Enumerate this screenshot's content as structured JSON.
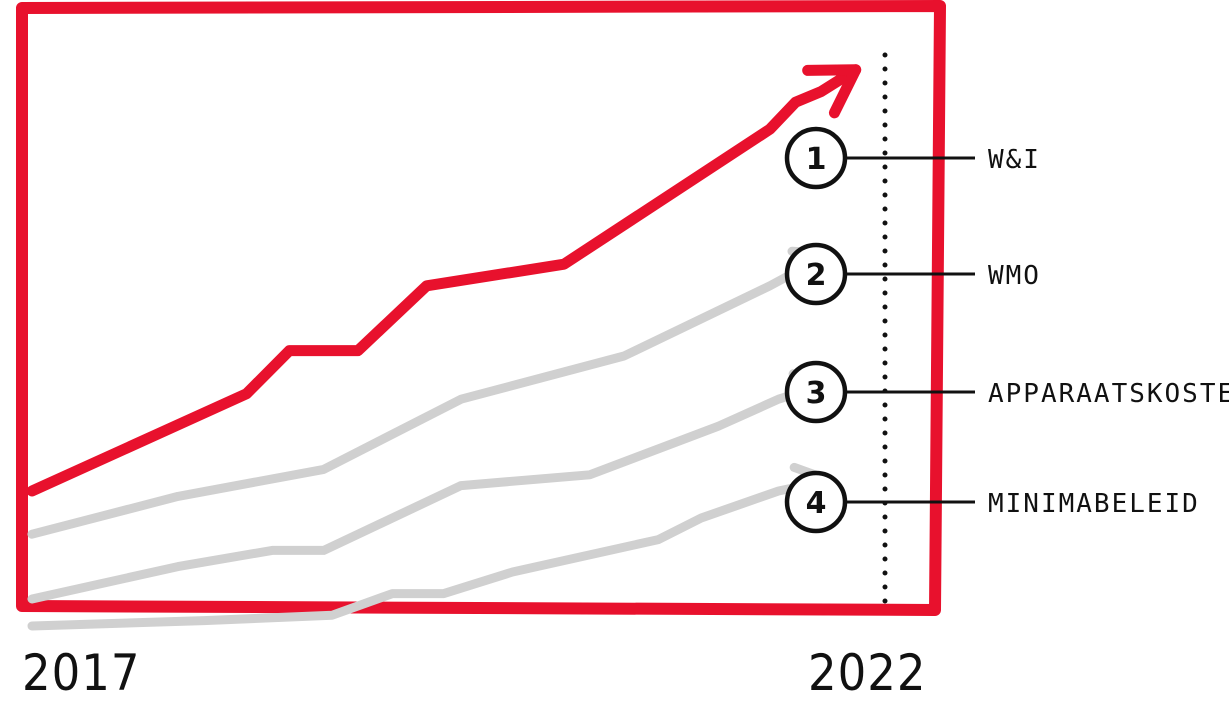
{
  "chart_data": {
    "type": "line",
    "x_range": [
      "2017",
      "2022"
    ],
    "xlabel": "",
    "ylabel": "",
    "grid": false,
    "legend": "right",
    "colors": {
      "frame": "#e8112d",
      "highlight": "#e8112d",
      "muted": "#d0d0d0",
      "ink": "#111111"
    },
    "x_tick_labels": {
      "start": "2017",
      "end": "2022"
    },
    "series": [
      {
        "name": "W&I",
        "badge": "1",
        "emphasis": true,
        "points": [
          [
            0,
            0.1
          ],
          [
            0.25,
            0.28
          ],
          [
            0.3,
            0.36
          ],
          [
            0.38,
            0.36
          ],
          [
            0.46,
            0.48
          ],
          [
            0.62,
            0.52
          ],
          [
            0.86,
            0.77
          ],
          [
            0.89,
            0.82
          ],
          [
            0.92,
            0.84
          ],
          [
            0.96,
            0.88
          ]
        ]
      },
      {
        "name": "WMO",
        "badge": "2",
        "emphasis": false,
        "points": [
          [
            0,
            0.02
          ],
          [
            0.17,
            0.09
          ],
          [
            0.34,
            0.14
          ],
          [
            0.5,
            0.27
          ],
          [
            0.69,
            0.35
          ],
          [
            0.86,
            0.48
          ],
          [
            0.93,
            0.54
          ]
        ]
      },
      {
        "name": "APPARAATSKOSTEN",
        "badge": "3",
        "emphasis": false,
        "points": [
          [
            0,
            -0.1
          ],
          [
            0.17,
            -0.04
          ],
          [
            0.28,
            -0.01
          ],
          [
            0.34,
            -0.01
          ],
          [
            0.5,
            0.11
          ],
          [
            0.65,
            0.13
          ],
          [
            0.8,
            0.22
          ],
          [
            0.87,
            0.27
          ],
          [
            0.93,
            0.3
          ]
        ]
      },
      {
        "name": "MINIMABELEID",
        "badge": "4",
        "emphasis": false,
        "points": [
          [
            0,
            -0.15
          ],
          [
            0.2,
            -0.14
          ],
          [
            0.35,
            -0.13
          ],
          [
            0.42,
            -0.09
          ],
          [
            0.48,
            -0.09
          ],
          [
            0.56,
            -0.05
          ],
          [
            0.73,
            0.01
          ],
          [
            0.78,
            0.05
          ],
          [
            0.87,
            0.1
          ],
          [
            0.93,
            0.12
          ]
        ]
      }
    ]
  }
}
